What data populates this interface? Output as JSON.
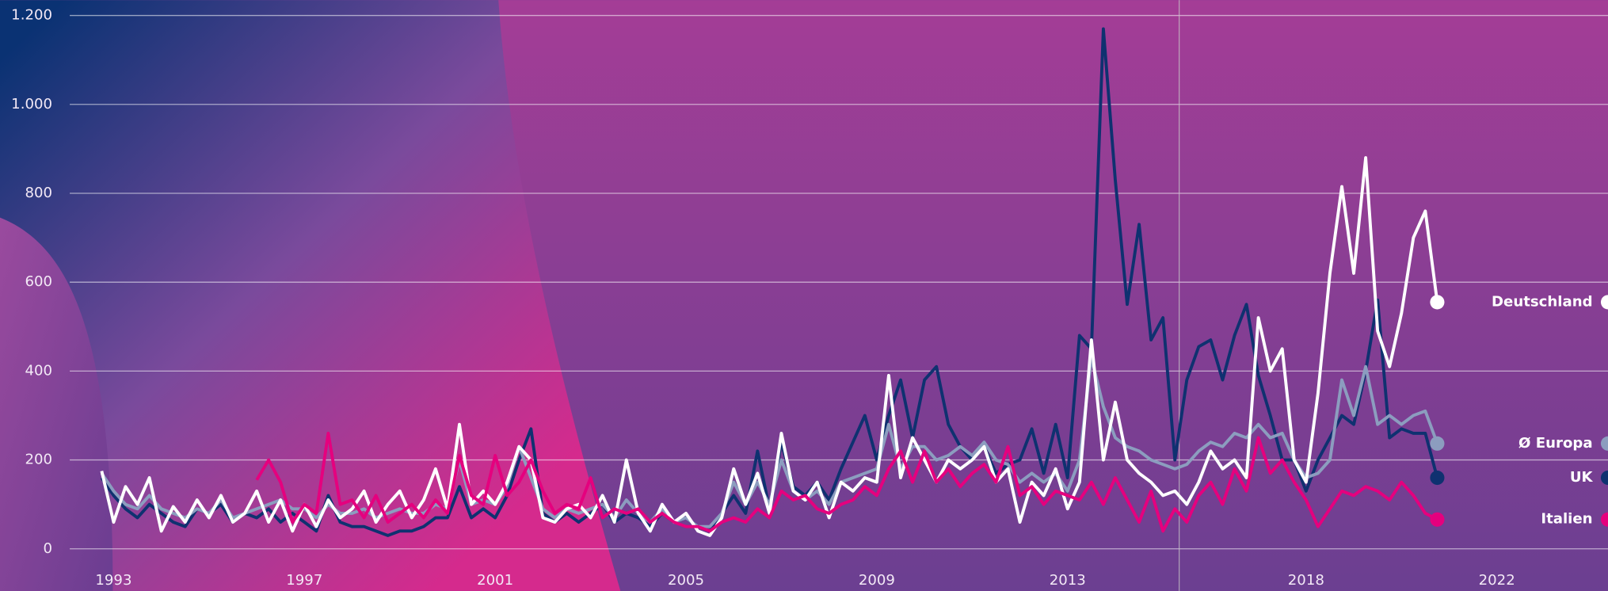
{
  "chart_data": {
    "type": "line",
    "x": [
      1992.75,
      1993,
      1993.25,
      1993.5,
      1993.75,
      1994,
      1994.25,
      1994.5,
      1994.75,
      1995,
      1995.25,
      1995.5,
      1995.75,
      1996,
      1996.25,
      1996.5,
      1996.75,
      1997,
      1997.25,
      1997.5,
      1997.75,
      1998,
      1998.25,
      1998.5,
      1998.75,
      1999,
      1999.25,
      1999.5,
      1999.75,
      2000,
      2000.25,
      2000.5,
      2000.75,
      2001,
      2001.25,
      2001.5,
      2001.75,
      2002,
      2002.25,
      2002.5,
      2002.75,
      2003,
      2003.25,
      2003.5,
      2003.75,
      2004,
      2004.25,
      2004.5,
      2004.75,
      2005,
      2005.25,
      2005.5,
      2005.75,
      2006,
      2006.25,
      2006.5,
      2006.75,
      2007,
      2007.25,
      2007.5,
      2007.75,
      2008,
      2008.25,
      2008.5,
      2008.75,
      2009,
      2009.25,
      2009.5,
      2009.75,
      2010,
      2010.25,
      2010.5,
      2010.75,
      2011,
      2011.25,
      2011.5,
      2011.75,
      2012,
      2012.25,
      2012.5,
      2012.75,
      2013,
      2013.25,
      2013.5,
      2013.75,
      2014,
      2014.25,
      2014.5,
      2014.75,
      2015,
      2015.25,
      2015.5,
      2015.75,
      2016,
      2016.25,
      2016.5,
      2016.75,
      2017,
      2017.25,
      2017.5,
      2017.75,
      2018,
      2018.25,
      2018.5,
      2018.75,
      2019,
      2019.25,
      2019.5,
      2019.75,
      2020,
      2020.25,
      2020.5,
      2020.75
    ],
    "series": [
      {
        "name": "UK",
        "color": "#0f3170",
        "values": [
          160,
          120,
          90,
          70,
          100,
          80,
          60,
          50,
          90,
          80,
          100,
          60,
          80,
          70,
          90,
          60,
          80,
          60,
          40,
          120,
          60,
          50,
          50,
          40,
          30,
          40,
          40,
          50,
          70,
          70,
          140,
          70,
          90,
          70,
          120,
          200,
          270,
          80,
          60,
          80,
          60,
          80,
          100,
          60,
          80,
          70,
          50,
          80,
          60,
          70,
          50,
          40,
          80,
          120,
          80,
          220,
          90,
          240,
          140,
          120,
          150,
          110,
          180,
          240,
          300,
          200,
          300,
          380,
          250,
          380,
          410,
          280,
          230,
          200,
          230,
          170,
          190,
          200,
          270,
          170,
          280,
          160,
          480,
          450,
          1170,
          830,
          550,
          730,
          470,
          520,
          200,
          380,
          455,
          470,
          380,
          480,
          550,
          390,
          300,
          200,
          200,
          130,
          200,
          250,
          300,
          280,
          400,
          560,
          250,
          270,
          260,
          260,
          160
        ]
      },
      {
        "name": "Ø Europa",
        "color": "#8c9dbf",
        "values": [
          170,
          130,
          100,
          90,
          120,
          90,
          80,
          70,
          90,
          80,
          110,
          70,
          80,
          90,
          100,
          110,
          90,
          90,
          70,
          100,
          80,
          80,
          90,
          70,
          80,
          90,
          80,
          80,
          100,
          90,
          200,
          100,
          110,
          100,
          140,
          230,
          160,
          90,
          70,
          90,
          80,
          90,
          100,
          70,
          110,
          80,
          60,
          90,
          60,
          70,
          50,
          50,
          80,
          150,
          100,
          150,
          100,
          200,
          130,
          110,
          130,
          100,
          150,
          160,
          170,
          180,
          280,
          180,
          230,
          230,
          200,
          210,
          230,
          210,
          240,
          200,
          190,
          150,
          170,
          150,
          170,
          130,
          200,
          430,
          320,
          250,
          230,
          220,
          200,
          190,
          180,
          190,
          220,
          240,
          230,
          260,
          250,
          280,
          250,
          260,
          200,
          160,
          170,
          200,
          380,
          300,
          410,
          280,
          300,
          280,
          300,
          310,
          237
        ]
      },
      {
        "name": "Deutschland",
        "color": "#ffffff",
        "values": [
          175,
          60,
          140,
          100,
          160,
          40,
          95,
          60,
          110,
          70,
          120,
          60,
          80,
          130,
          60,
          110,
          40,
          100,
          50,
          110,
          70,
          90,
          130,
          60,
          100,
          130,
          70,
          110,
          180,
          90,
          280,
          100,
          130,
          100,
          150,
          230,
          200,
          70,
          60,
          90,
          100,
          70,
          120,
          60,
          200,
          80,
          40,
          100,
          60,
          80,
          40,
          30,
          70,
          180,
          100,
          170,
          80,
          260,
          130,
          110,
          150,
          70,
          150,
          130,
          160,
          150,
          390,
          160,
          250,
          200,
          150,
          200,
          180,
          200,
          230,
          150,
          180,
          60,
          150,
          120,
          180,
          90,
          150,
          470,
          200,
          330,
          200,
          170,
          150,
          120,
          130,
          100,
          150,
          220,
          180,
          200,
          160,
          520,
          400,
          450,
          200,
          150,
          350,
          620,
          815,
          620,
          880,
          490,
          410,
          530,
          700,
          760,
          555
        ]
      },
      {
        "name": "Italien",
        "color": "#e5007e",
        "values": [
          null,
          null,
          null,
          null,
          null,
          null,
          null,
          null,
          null,
          null,
          null,
          null,
          null,
          155,
          200,
          150,
          60,
          100,
          80,
          260,
          100,
          110,
          70,
          120,
          60,
          80,
          100,
          70,
          110,
          80,
          210,
          120,
          100,
          210,
          120,
          150,
          200,
          130,
          80,
          100,
          90,
          160,
          70,
          90,
          80,
          90,
          60,
          80,
          60,
          50,
          50,
          40,
          60,
          70,
          60,
          90,
          70,
          130,
          110,
          120,
          90,
          80,
          100,
          110,
          140,
          120,
          180,
          220,
          150,
          220,
          150,
          180,
          140,
          170,
          190,
          150,
          230,
          120,
          140,
          100,
          130,
          120,
          110,
          150,
          100,
          160,
          110,
          60,
          130,
          40,
          90,
          60,
          120,
          150,
          100,
          180,
          130,
          250,
          170,
          200,
          150,
          110,
          50,
          90,
          130,
          120,
          140,
          130,
          110,
          150,
          120,
          80,
          66
        ]
      }
    ],
    "xlim": [
      1992.08,
      2024.33
    ],
    "xticks": [
      1993,
      1997,
      2001,
      2005,
      2009,
      2013,
      2018,
      2022
    ],
    "ylim": [
      0,
      1200
    ],
    "yticks": [
      0,
      200,
      400,
      600,
      800,
      {
        "value": 1000,
        "label": "1.000"
      },
      {
        "value": 1200,
        "label": "1.200"
      }
    ],
    "reference_line_x": 2015.34,
    "grid": true
  }
}
